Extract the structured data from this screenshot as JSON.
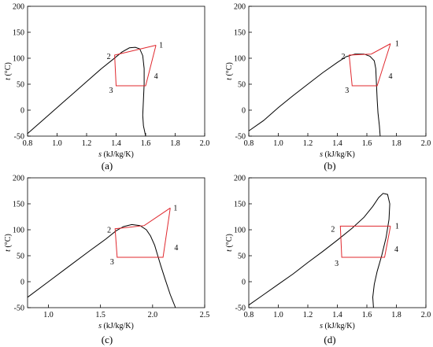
{
  "chart_data": [
    {
      "type": "line",
      "panel_label": "(a)",
      "xlabel_var": "s",
      "xlabel_unit": " (kJ/kg/K)",
      "ylabel_var": "t",
      "ylabel_unit": " (°C)",
      "xlim": [
        0.8,
        2.0
      ],
      "ylim": [
        -50,
        200
      ],
      "xticks": [
        "0.8",
        "1.0",
        "1.2",
        "1.4",
        "1.6",
        "1.8",
        "2.0"
      ],
      "yticks": [
        "-50",
        "0",
        "50",
        "100",
        "150",
        "200"
      ],
      "saturation_dome": {
        "x": [
          0.8,
          0.9,
          1.0,
          1.1,
          1.2,
          1.3,
          1.38,
          1.44,
          1.49,
          1.53,
          1.56,
          1.58,
          1.59,
          1.59,
          1.585,
          1.58,
          1.585,
          1.6
        ],
        "y": [
          -45,
          -20,
          5,
          30,
          55,
          80,
          98,
          112,
          120,
          121,
          118,
          105,
          80,
          50,
          20,
          -10,
          -30,
          -50
        ]
      },
      "cycle": {
        "x": [
          1.67,
          1.39,
          1.4,
          1.6,
          1.67
        ],
        "y": [
          125,
          106,
          47,
          47,
          125
        ]
      },
      "points": [
        {
          "label": "1",
          "x": 1.67,
          "y": 125
        },
        {
          "label": "2",
          "x": 1.39,
          "y": 106
        },
        {
          "label": "3",
          "x": 1.4,
          "y": 47
        },
        {
          "label": "4",
          "x": 1.63,
          "y": 65
        }
      ]
    },
    {
      "type": "line",
      "panel_label": "(b)",
      "xlabel_var": "s",
      "xlabel_unit": " (kJ/kg/K)",
      "ylabel_var": "t",
      "ylabel_unit": " (°C)",
      "xlim": [
        0.8,
        2.0
      ],
      "ylim": [
        -50,
        200
      ],
      "xticks": [
        "0.8",
        "1.0",
        "1.2",
        "1.4",
        "1.6",
        "1.8",
        "2.0"
      ],
      "yticks": [
        "-50",
        "0",
        "50",
        "100",
        "150",
        "200"
      ],
      "saturation_dome": {
        "x": [
          0.8,
          0.9,
          1.0,
          1.1,
          1.2,
          1.3,
          1.4,
          1.46,
          1.52,
          1.58,
          1.62,
          1.65,
          1.66,
          1.665,
          1.67,
          1.675,
          1.685,
          1.69
        ],
        "y": [
          -40,
          -20,
          5,
          28,
          50,
          72,
          92,
          103,
          108,
          108,
          104,
          95,
          80,
          50,
          20,
          -5,
          -30,
          -50
        ]
      },
      "cycle": {
        "x": [
          1.76,
          1.63,
          1.48,
          1.5,
          1.67,
          1.76
        ],
        "y": [
          128,
          108,
          106,
          47,
          47,
          128
        ]
      },
      "points": [
        {
          "label": "1",
          "x": 1.77,
          "y": 128
        },
        {
          "label": "2",
          "x": 1.48,
          "y": 106
        },
        {
          "label": "3",
          "x": 1.5,
          "y": 47
        },
        {
          "label": "4",
          "x": 1.72,
          "y": 65
        }
      ]
    },
    {
      "type": "line",
      "panel_label": "(c)",
      "xlabel_var": "s",
      "xlabel_unit": " (kJ/kg/K)",
      "ylabel_var": "t",
      "ylabel_unit": " (°C)",
      "xlim": [
        0.8,
        2.5
      ],
      "ylim": [
        -50,
        200
      ],
      "xticks": [
        "1.0",
        "1.5",
        "2.0",
        "2.5"
      ],
      "yticks": [
        "-50",
        "0",
        "50",
        "100",
        "150",
        "200"
      ],
      "saturation_dome": {
        "x": [
          0.8,
          1.0,
          1.2,
          1.4,
          1.55,
          1.65,
          1.72,
          1.8,
          1.88,
          1.94,
          1.98,
          2.02,
          2.05,
          2.08,
          2.12,
          2.17,
          2.22
        ],
        "y": [
          -30,
          0,
          30,
          60,
          82,
          98,
          106,
          110,
          108,
          100,
          88,
          70,
          50,
          30,
          5,
          -25,
          -50
        ]
      },
      "cycle": {
        "x": [
          2.17,
          1.92,
          1.64,
          1.66,
          2.1,
          2.17
        ],
        "y": [
          142,
          108,
          102,
          47,
          47,
          142
        ]
      },
      "points": [
        {
          "label": "1",
          "x": 2.17,
          "y": 142
        },
        {
          "label": "2",
          "x": 1.64,
          "y": 102
        },
        {
          "label": "3",
          "x": 1.66,
          "y": 47
        },
        {
          "label": "4",
          "x": 2.17,
          "y": 65
        }
      ]
    },
    {
      "type": "line",
      "panel_label": "(d)",
      "xlabel_var": "s",
      "xlabel_unit": " (kJ/kg/K)",
      "ylabel_var": "t",
      "ylabel_unit": " (°C)",
      "xlim": [
        0.8,
        2.0
      ],
      "ylim": [
        -50,
        200
      ],
      "xticks": [
        "0.8",
        "1.0",
        "1.2",
        "1.4",
        "1.6",
        "1.8",
        "2.0"
      ],
      "yticks": [
        "-50",
        "0",
        "50",
        "100",
        "150",
        "200"
      ],
      "saturation_dome": {
        "x": [
          0.8,
          0.9,
          1.0,
          1.1,
          1.2,
          1.3,
          1.4,
          1.5,
          1.58,
          1.64,
          1.68,
          1.71,
          1.74,
          1.755,
          1.75,
          1.73,
          1.7,
          1.67,
          1.65,
          1.64,
          1.645
        ],
        "y": [
          -45,
          -25,
          -5,
          15,
          37,
          58,
          80,
          103,
          124,
          145,
          162,
          170,
          168,
          150,
          120,
          85,
          50,
          20,
          -5,
          -30,
          -50
        ]
      },
      "cycle": {
        "x": [
          1.76,
          1.42,
          1.43,
          1.72,
          1.76
        ],
        "y": [
          107,
          107,
          47,
          47,
          107
        ]
      },
      "points": [
        {
          "label": "1",
          "x": 1.77,
          "y": 107
        },
        {
          "label": "2",
          "x": 1.41,
          "y": 104
        },
        {
          "label": "3",
          "x": 1.43,
          "y": 44
        },
        {
          "label": "4",
          "x": 1.76,
          "y": 62
        }
      ]
    }
  ]
}
